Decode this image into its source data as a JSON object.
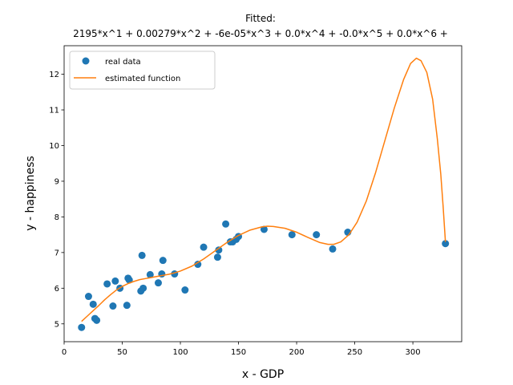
{
  "chart_data": {
    "type": "scatter",
    "title_line1": "Fitted:",
    "title_line2": "2195*x^1 + 0.00279*x^2 + -6e-05*x^3 + 0.0*x^4 + -0.0*x^5 + 0.0*x^6 +",
    "xlabel": "x - GDP",
    "ylabel": "y - happiness",
    "xlim": [
      0,
      342
    ],
    "ylim": [
      4.5,
      12.8
    ],
    "xticks": [
      0,
      50,
      100,
      150,
      200,
      250,
      300
    ],
    "yticks": [
      5,
      6,
      7,
      8,
      9,
      10,
      11,
      12
    ],
    "legend_position": "top-left",
    "series": [
      {
        "name": "real data",
        "kind": "scatter",
        "color": "#1f77b4",
        "points": [
          [
            15,
            4.9
          ],
          [
            21,
            5.77
          ],
          [
            25,
            5.55
          ],
          [
            26.5,
            5.15
          ],
          [
            28,
            5.1
          ],
          [
            37,
            6.12
          ],
          [
            42,
            5.5
          ],
          [
            44,
            6.2
          ],
          [
            48,
            6.0
          ],
          [
            54,
            5.52
          ],
          [
            55,
            6.28
          ],
          [
            56,
            6.23
          ],
          [
            66,
            5.92
          ],
          [
            67,
            6.92
          ],
          [
            68,
            6.0
          ],
          [
            74,
            6.38
          ],
          [
            81,
            6.15
          ],
          [
            84,
            6.4
          ],
          [
            85,
            6.78
          ],
          [
            95,
            6.4
          ],
          [
            104,
            5.95
          ],
          [
            115,
            6.67
          ],
          [
            120,
            7.15
          ],
          [
            132,
            6.87
          ],
          [
            133,
            7.07
          ],
          [
            139,
            7.8
          ],
          [
            143,
            7.3
          ],
          [
            145,
            7.3
          ],
          [
            148,
            7.37
          ],
          [
            150,
            7.45
          ],
          [
            172,
            7.65
          ],
          [
            196,
            7.5
          ],
          [
            217,
            7.5
          ],
          [
            231,
            7.1
          ],
          [
            244,
            7.57
          ],
          [
            328,
            7.25
          ]
        ]
      },
      {
        "name": "estimated function",
        "kind": "line",
        "color": "#ff7f0e",
        "points": [
          [
            15,
            5.07
          ],
          [
            20,
            5.22
          ],
          [
            25,
            5.37
          ],
          [
            30,
            5.52
          ],
          [
            35,
            5.68
          ],
          [
            40,
            5.82
          ],
          [
            45,
            5.95
          ],
          [
            50,
            6.05
          ],
          [
            55,
            6.13
          ],
          [
            60,
            6.19
          ],
          [
            65,
            6.24
          ],
          [
            70,
            6.27
          ],
          [
            75,
            6.3
          ],
          [
            80,
            6.33
          ],
          [
            85,
            6.36
          ],
          [
            90,
            6.39
          ],
          [
            95,
            6.43
          ],
          [
            100,
            6.48
          ],
          [
            110,
            6.62
          ],
          [
            120,
            6.82
          ],
          [
            130,
            7.05
          ],
          [
            140,
            7.28
          ],
          [
            150,
            7.48
          ],
          [
            160,
            7.63
          ],
          [
            170,
            7.72
          ],
          [
            175,
            7.74
          ],
          [
            180,
            7.73
          ],
          [
            190,
            7.68
          ],
          [
            200,
            7.57
          ],
          [
            210,
            7.42
          ],
          [
            220,
            7.28
          ],
          [
            227,
            7.23
          ],
          [
            232,
            7.23
          ],
          [
            238,
            7.3
          ],
          [
            245,
            7.5
          ],
          [
            252,
            7.85
          ],
          [
            260,
            8.45
          ],
          [
            268,
            9.25
          ],
          [
            276,
            10.15
          ],
          [
            284,
            11.05
          ],
          [
            292,
            11.85
          ],
          [
            298,
            12.3
          ],
          [
            303,
            12.45
          ],
          [
            307,
            12.38
          ],
          [
            312,
            12.05
          ],
          [
            317,
            11.3
          ],
          [
            321,
            10.2
          ],
          [
            324,
            9.2
          ],
          [
            326,
            8.3
          ],
          [
            328,
            7.3
          ]
        ]
      }
    ]
  }
}
